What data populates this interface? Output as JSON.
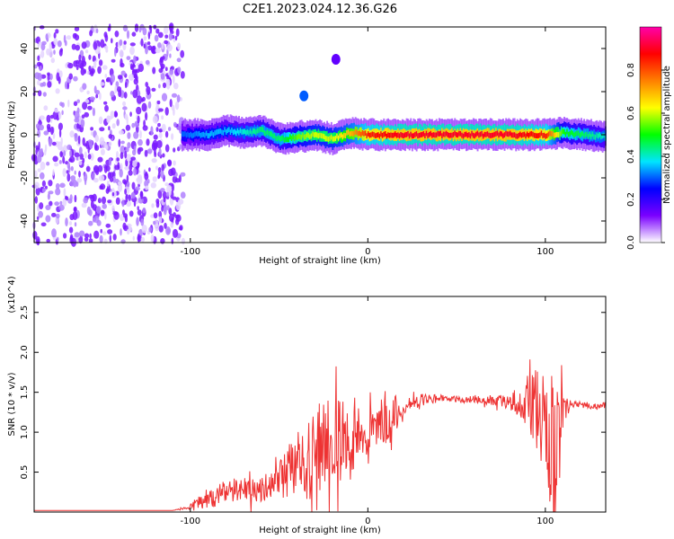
{
  "chart_data": [
    {
      "type": "heatmap",
      "title": "C2E1.2023.024.12.36.G26",
      "xlabel": "Height of straight line (km)",
      "ylabel": "Frequency (Hz)",
      "xlim": [
        -188,
        134
      ],
      "ylim": [
        -50,
        50
      ],
      "xticks": [
        "-100",
        "0",
        "100"
      ],
      "yticks": [
        "-40",
        "-20",
        "0",
        "20",
        "40"
      ],
      "colorbar": {
        "label": "Normalized spectral amplitude",
        "range": [
          0.0,
          1.0
        ],
        "ticks": [
          "0.0",
          "0.2",
          "0.4",
          "0.6",
          "0.8"
        ],
        "colors": [
          "#ffffff",
          "#7a00ff",
          "#0000ff",
          "#00e5ff",
          "#00ff00",
          "#ffff00",
          "#ff8000",
          "#ff0000",
          "#ff00aa"
        ]
      },
      "regions": [
        {
          "x_range": [
            -188,
            -104
          ],
          "description_values": "scattered noise across all frequencies",
          "amplitude": 0.05
        },
        {
          "x_range": [
            -104,
            134
          ],
          "center_frequency": 0,
          "amplitude_peak": 0.9
        }
      ],
      "ridge": {
        "x": [
          -105,
          -90,
          -80,
          -70,
          -60,
          -50,
          -40,
          -30,
          -20,
          -10,
          0,
          20,
          40,
          60,
          80,
          100,
          110,
          134
        ],
        "y": [
          0,
          0,
          2,
          1,
          2,
          -2,
          -1,
          0,
          -2,
          1,
          0,
          0,
          0,
          0,
          0,
          0,
          1,
          -1
        ],
        "amplitude": [
          0.3,
          0.35,
          0.35,
          0.4,
          0.45,
          0.45,
          0.55,
          0.6,
          0.6,
          0.7,
          0.85,
          0.9,
          0.9,
          0.9,
          0.9,
          0.85,
          0.5,
          0.4
        ]
      },
      "secondary_blobs": [
        {
          "x": -36,
          "y": 18,
          "amplitude": 0.3
        },
        {
          "x": -18,
          "y": 35,
          "amplitude": 0.15
        }
      ]
    },
    {
      "type": "line",
      "xlabel": "Height of straight line (km)",
      "ylabel": "SNR (10 * v/v)",
      "y_multiplier": "(x10^4)",
      "xlim": [
        -188,
        134
      ],
      "ylim": [
        0,
        2.7
      ],
      "xticks": [
        "-100",
        "0",
        "100"
      ],
      "yticks": [
        "0.5",
        "1.0",
        "1.5",
        "2.0",
        "2.5"
      ],
      "color": "#ee3333",
      "x": [
        -188,
        -150,
        -110,
        -102,
        -95,
        -90,
        -85,
        -80,
        -75,
        -70,
        -65,
        -60,
        -55,
        -50,
        -45,
        -40,
        -35,
        -30,
        -25,
        -20,
        -15,
        -10,
        -5,
        0,
        5,
        10,
        15,
        20,
        25,
        30,
        35,
        40,
        45,
        50,
        55,
        60,
        65,
        70,
        75,
        80,
        85,
        90,
        95,
        100,
        102,
        104,
        106,
        108,
        110,
        115,
        120,
        125,
        130,
        134
      ],
      "y": [
        0.02,
        0.02,
        0.02,
        0.05,
        0.12,
        0.18,
        0.2,
        0.25,
        0.28,
        0.3,
        0.28,
        0.3,
        0.35,
        0.42,
        0.48,
        0.55,
        0.6,
        0.75,
        0.85,
        0.9,
        0.95,
        0.85,
        0.95,
        1.0,
        1.05,
        1.15,
        1.2,
        1.28,
        1.35,
        1.4,
        1.42,
        1.42,
        1.42,
        1.42,
        1.4,
        1.42,
        1.4,
        1.4,
        1.4,
        1.38,
        1.38,
        1.4,
        1.3,
        1.1,
        0.9,
        0.7,
        0.6,
        0.7,
        1.3,
        1.35,
        1.34,
        1.34,
        1.33,
        1.33
      ],
      "noise_amplitude": [
        0.0,
        0.0,
        0.0,
        0.02,
        0.1,
        0.12,
        0.15,
        0.15,
        0.15,
        0.18,
        0.18,
        0.18,
        0.2,
        0.25,
        0.35,
        0.45,
        0.5,
        0.55,
        0.6,
        0.6,
        0.6,
        0.45,
        0.35,
        0.3,
        0.25,
        0.45,
        0.25,
        0.15,
        0.1,
        0.08,
        0.06,
        0.05,
        0.04,
        0.04,
        0.04,
        0.05,
        0.05,
        0.06,
        0.08,
        0.1,
        0.2,
        0.35,
        0.5,
        0.7,
        0.9,
        1.1,
        1.2,
        1.0,
        0.2,
        0.05,
        0.04,
        0.04,
        0.04,
        0.04
      ]
    }
  ]
}
